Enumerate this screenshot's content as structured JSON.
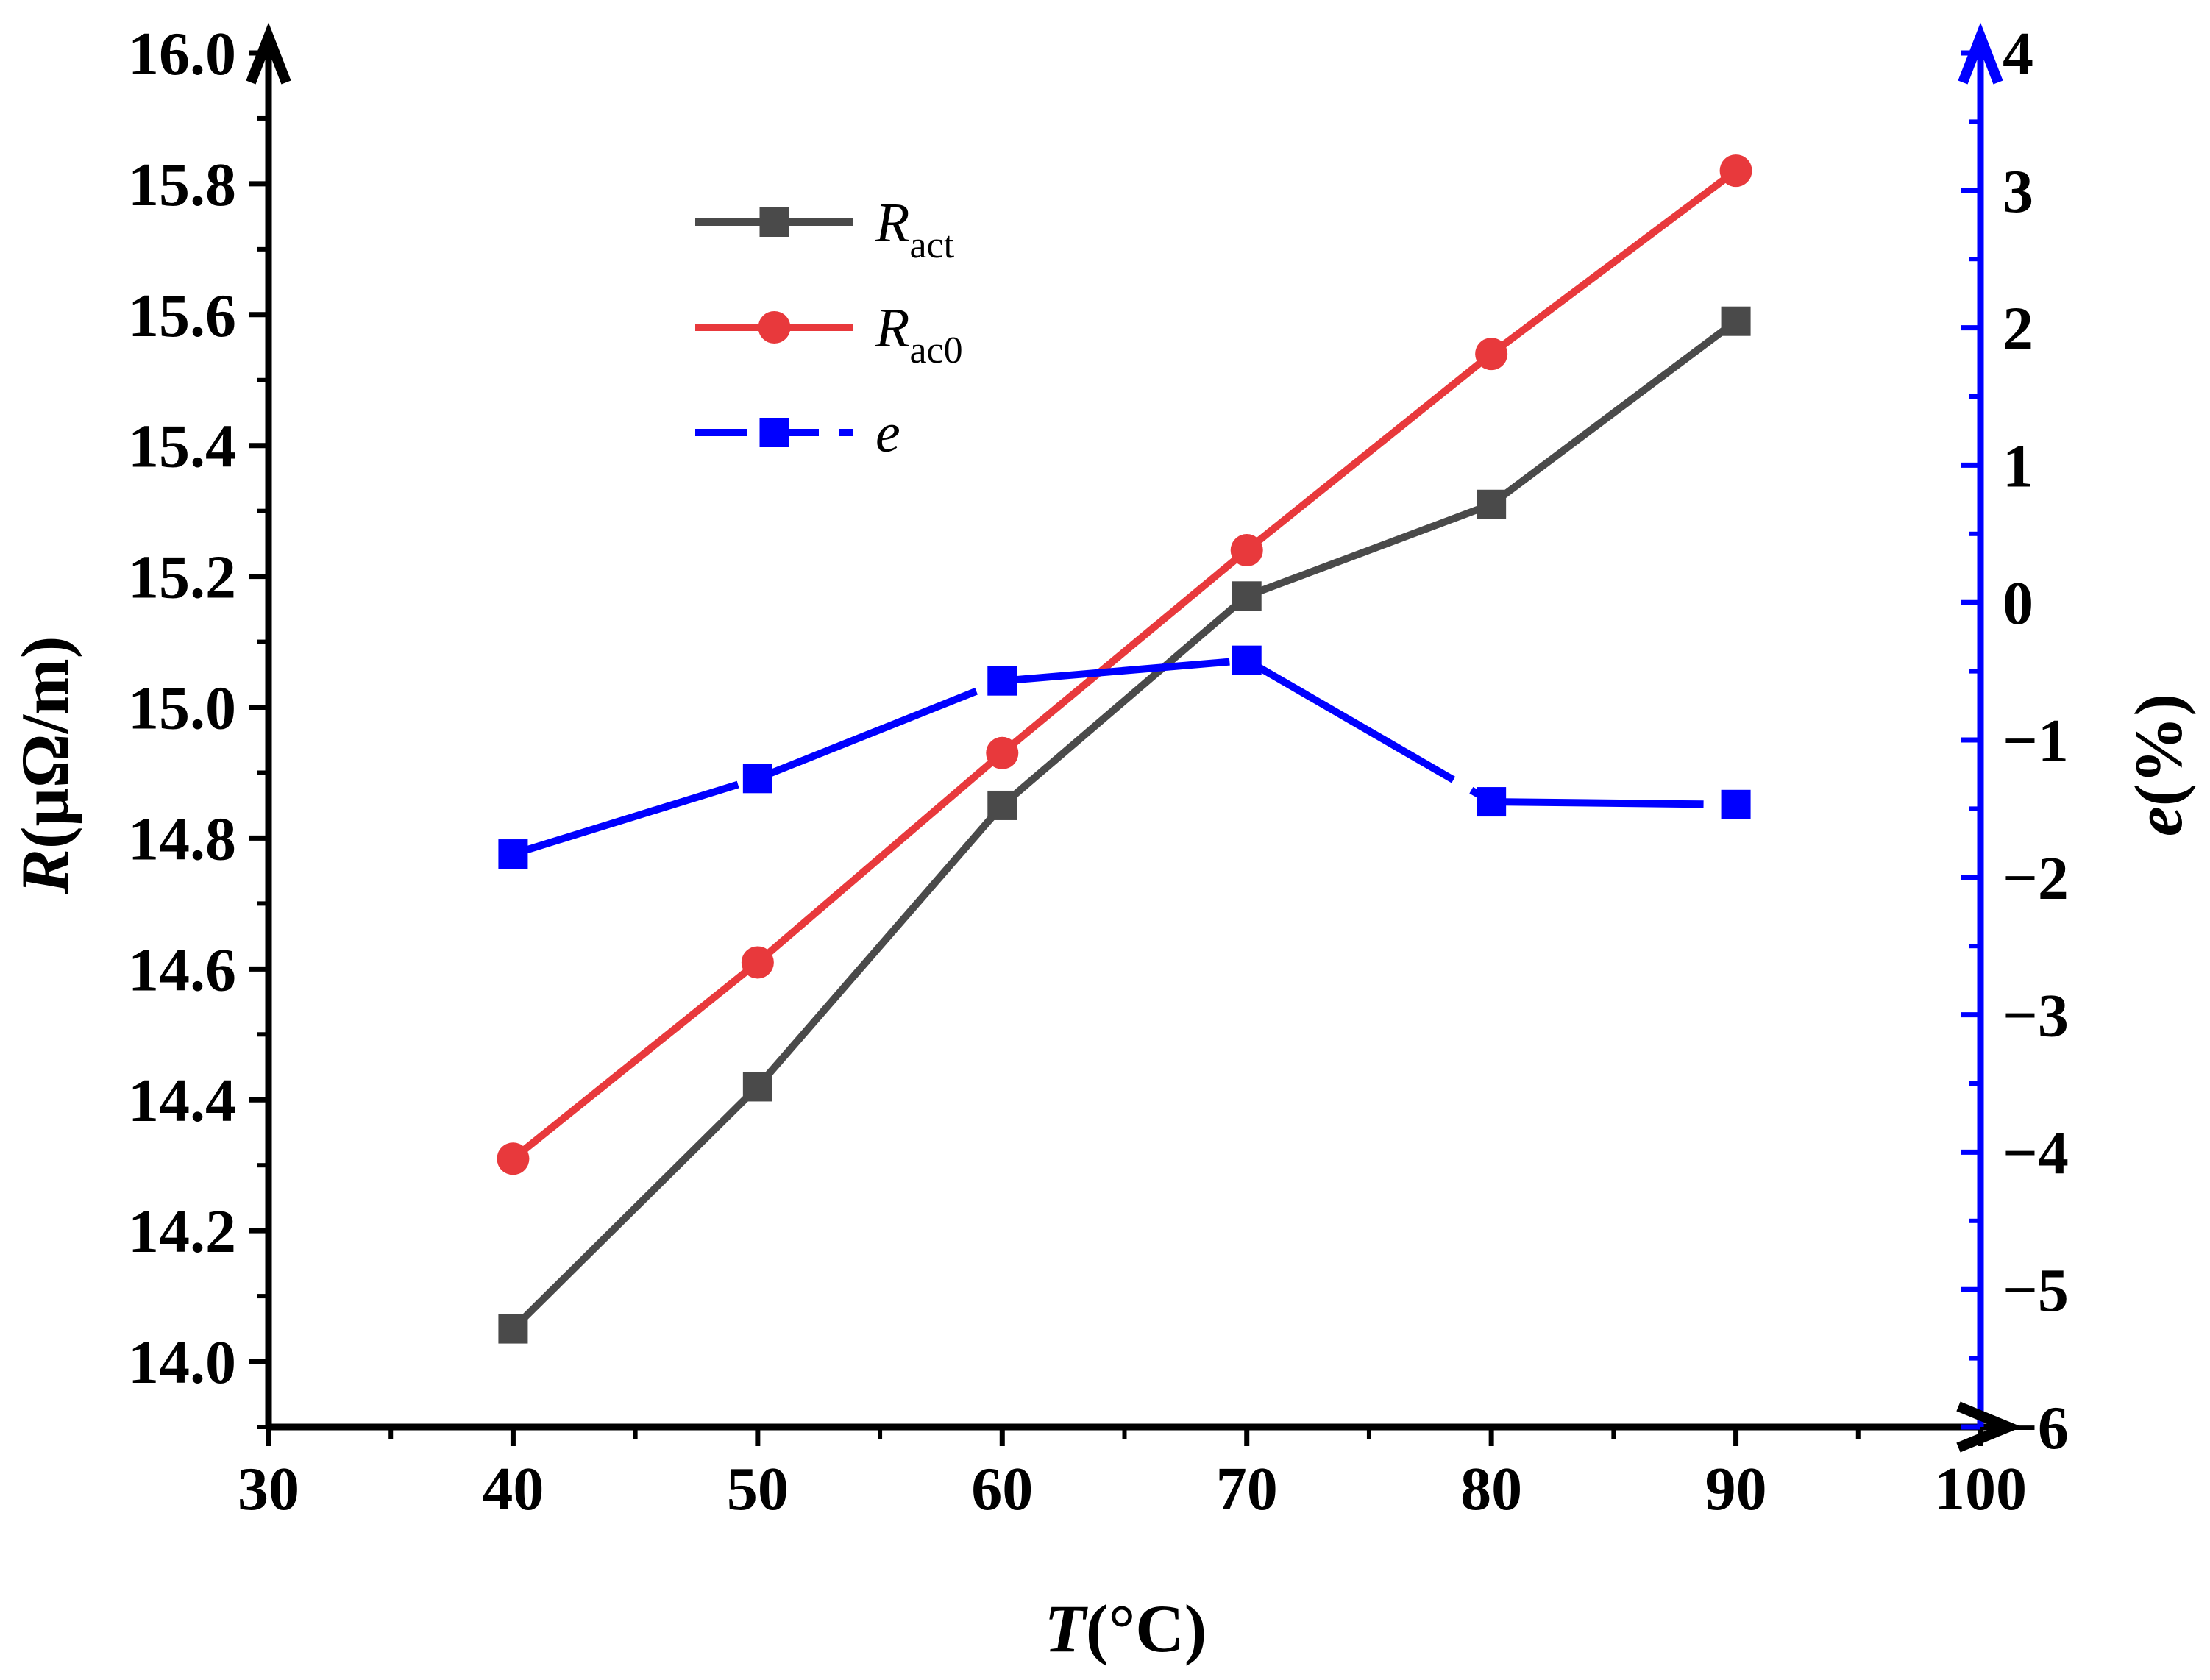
{
  "chart_data": {
    "type": "line",
    "title": "",
    "x": [
      40,
      50,
      60,
      70,
      80,
      90
    ],
    "xlim": [
      30,
      100
    ],
    "xticks": [
      30,
      40,
      50,
      60,
      70,
      80,
      90,
      100
    ],
    "xtick_labels": [
      "30",
      "40",
      "50",
      "60",
      "70",
      "80",
      "90",
      "100"
    ],
    "xlabel": {
      "symbol": "T",
      "unit": "(°C)"
    },
    "ylim_left": [
      13.9,
      16.0
    ],
    "yticks_left": [
      14.0,
      14.2,
      14.4,
      14.6,
      14.8,
      15.0,
      15.2,
      15.4,
      15.6,
      15.8,
      16.0
    ],
    "ytick_labels_left": [
      "14.0",
      "14.2",
      "14.4",
      "14.6",
      "14.8",
      "15.0",
      "15.2",
      "15.4",
      "15.6",
      "15.8",
      "16.0"
    ],
    "ylabel_left": {
      "symbol": "R",
      "unit": "(μΩ/m)"
    },
    "ylim_right": [
      -6,
      4
    ],
    "yticks_right": [
      -6,
      -5,
      -4,
      -3,
      -2,
      -1,
      0,
      1,
      2,
      3,
      4
    ],
    "ytick_labels_right": [
      "−6",
      "−5",
      "−4",
      "−3",
      "−2",
      "−1",
      "0",
      "1",
      "2",
      "3",
      "4"
    ],
    "ylabel_right": {
      "symbol": "e",
      "unit": "(%)"
    },
    "series": [
      {
        "name": "R_act",
        "label_main": "R",
        "label_sub": "act",
        "axis": "left",
        "marker": "square",
        "dash": false,
        "color": "#4a4a4a",
        "values": [
          14.05,
          14.42,
          14.85,
          15.17,
          15.31,
          15.59
        ]
      },
      {
        "name": "R_ac0",
        "label_main": "R",
        "label_sub": "ac0",
        "axis": "left",
        "marker": "circle",
        "dash": false,
        "color": "#e8393c",
        "values": [
          14.31,
          14.61,
          14.93,
          15.24,
          15.54,
          15.82
        ]
      },
      {
        "name": "e",
        "label_main": "e",
        "label_sub": "",
        "axis": "right",
        "marker": "square",
        "dash": true,
        "color": "#0000ff",
        "values": [
          -1.83,
          -1.28,
          -0.57,
          -0.42,
          -1.45,
          -1.47
        ]
      }
    ],
    "legend_position": "top-left"
  }
}
